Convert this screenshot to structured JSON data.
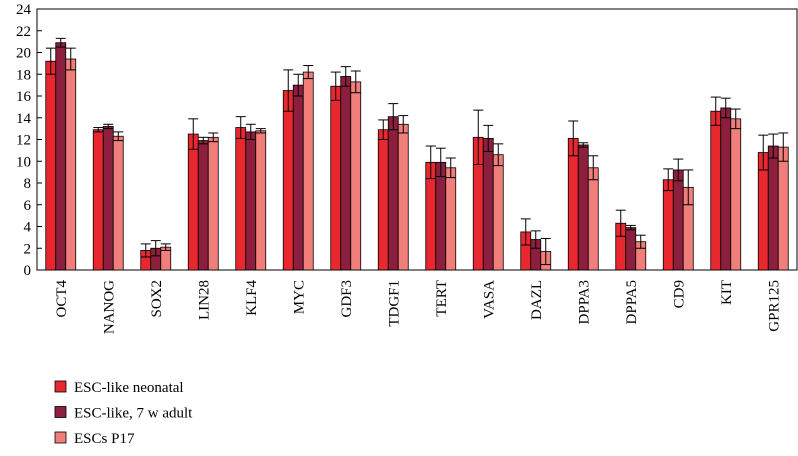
{
  "chart_data": {
    "type": "bar",
    "categories": [
      "OCT4",
      "NANOG",
      "SOX2",
      "LIN28",
      "KLF4",
      "MYC",
      "GDF3",
      "TDGF1",
      "TERT",
      "VASA",
      "DAZL",
      "DPPA3",
      "DPPA5",
      "CD9",
      "KIT",
      "GPR125"
    ],
    "series": [
      {
        "name": "ESC-like neonatal",
        "color": "#e8282e",
        "values": [
          19.2,
          12.9,
          1.8,
          12.5,
          13.1,
          16.5,
          16.9,
          12.9,
          9.9,
          12.2,
          3.5,
          12.1,
          4.3,
          8.3,
          14.6,
          10.8
        ],
        "errors": [
          1.2,
          0.2,
          0.6,
          1.4,
          1.0,
          1.9,
          1.3,
          0.9,
          1.5,
          2.5,
          1.2,
          1.6,
          1.2,
          1.0,
          1.3,
          1.6
        ]
      },
      {
        "name": "ESC-like, 7 w adult",
        "color": "#8c1f3d",
        "values": [
          20.9,
          13.2,
          2.0,
          11.9,
          12.7,
          17.0,
          17.8,
          14.1,
          9.9,
          12.1,
          2.8,
          11.5,
          3.9,
          9.2,
          14.9,
          11.4
        ],
        "errors": [
          0.4,
          0.2,
          0.7,
          0.3,
          0.7,
          1.0,
          0.9,
          1.2,
          1.3,
          1.2,
          0.8,
          0.2,
          0.2,
          1.0,
          0.9,
          1.1
        ]
      },
      {
        "name": "ESCs P17",
        "color": "#f07e7a",
        "values": [
          19.4,
          12.3,
          2.1,
          12.2,
          12.8,
          18.2,
          17.3,
          13.4,
          9.4,
          10.6,
          1.7,
          9.4,
          2.6,
          7.6,
          13.9,
          11.3
        ],
        "errors": [
          1.0,
          0.4,
          0.3,
          0.4,
          0.2,
          0.6,
          1.0,
          0.8,
          0.9,
          1.0,
          1.2,
          1.1,
          0.6,
          1.6,
          0.9,
          1.3
        ]
      }
    ],
    "ylim": [
      0,
      24
    ],
    "yticks": [
      0,
      2,
      4,
      6,
      8,
      10,
      12,
      14,
      16,
      18,
      20,
      22,
      24
    ],
    "legend_position": "bottom-left",
    "grid": false
  }
}
